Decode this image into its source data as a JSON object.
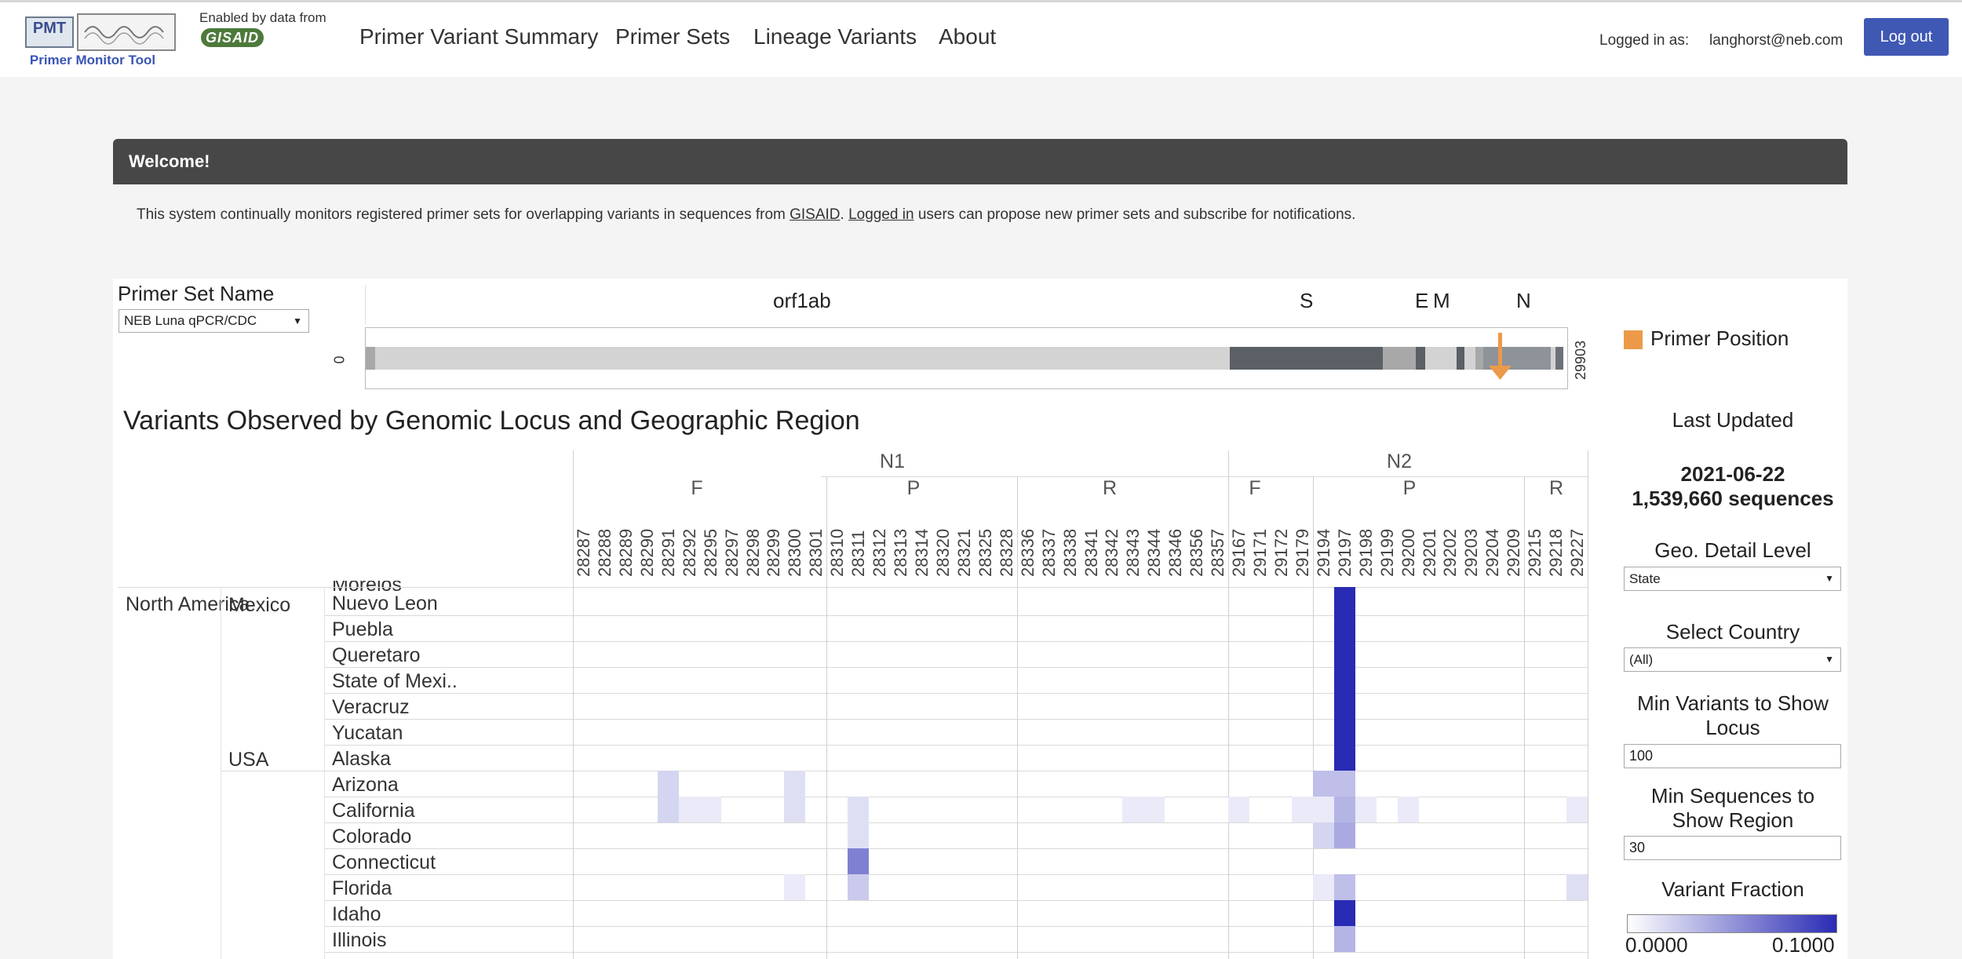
{
  "header": {
    "logo_abbr": "PMT",
    "logo_caption": "Primer Monitor Tool",
    "enabled_by": "Enabled by data from",
    "gisaid_logo": "GISAID",
    "nav": [
      "Primer Variant Summary",
      "Primer Sets",
      "Lineage Variants",
      "About"
    ],
    "logged_in_label": "Logged in as:",
    "user_email": "langhorst@neb.com",
    "logout_label": "Log out"
  },
  "welcome": {
    "title": "Welcome!",
    "text_1": "This system continually monitors registered primer sets for overlapping variants in sequences from ",
    "link_gisaid": "GISAID",
    "text_2": ". ",
    "link_logged_in": "Logged in",
    "text_3": " users can propose new primer sets and subscribe for notifications."
  },
  "primer_set": {
    "label": "Primer Set Name",
    "selected": "NEB Luna qPCR/CDC"
  },
  "genome": {
    "start_tick": "0",
    "end_tick": "29903",
    "gene_labels": [
      "orf1ab",
      "S",
      "E",
      "M",
      "N"
    ],
    "legend_label": "Primer Position",
    "primer_color": "#ec9a4a"
  },
  "heatmap": {
    "title": "Variants Observed by Genomic Locus and Geographic Region",
    "primer_groups": [
      "N1",
      "N2"
    ],
    "sub_groups": [
      "F",
      "P",
      "R",
      "F",
      "P",
      "R"
    ],
    "loci": [
      "28287",
      "28288",
      "28289",
      "28290",
      "28291",
      "28292",
      "28295",
      "28297",
      "28298",
      "28299",
      "28300",
      "28301",
      "28310",
      "28311",
      "28312",
      "28313",
      "28314",
      "28320",
      "28321",
      "28325",
      "28328",
      "28336",
      "28337",
      "28338",
      "28341",
      "28342",
      "28343",
      "28344",
      "28346",
      "28356",
      "28357",
      "29167",
      "29171",
      "29172",
      "29179",
      "29194",
      "29197",
      "29198",
      "29199",
      "29200",
      "29201",
      "29202",
      "29203",
      "29204",
      "29209",
      "29215",
      "29218",
      "29227"
    ],
    "continent": "North America",
    "countries": [
      "Mexico",
      "USA"
    ],
    "partial_region": "Morelos",
    "regions": [
      "Nuevo Leon",
      "Puebla",
      "Queretaro",
      "State of Mexi..",
      "Veracruz",
      "Yucatan",
      "Alaska",
      "Arizona",
      "California",
      "Colorado",
      "Connecticut",
      "Florida",
      "Idaho",
      "Illinois"
    ],
    "cells": [
      {
        "region": "Nuevo Leon",
        "locus": "29197",
        "fraction": 0.1
      },
      {
        "region": "Puebla",
        "locus": "29197",
        "fraction": 0.1
      },
      {
        "region": "Queretaro",
        "locus": "29197",
        "fraction": 0.1
      },
      {
        "region": "State of Mexi..",
        "locus": "29197",
        "fraction": 0.1
      },
      {
        "region": "Veracruz",
        "locus": "29197",
        "fraction": 0.1
      },
      {
        "region": "Yucatan",
        "locus": "29197",
        "fraction": 0.1
      },
      {
        "region": "Alaska",
        "locus": "29197",
        "fraction": 0.1
      },
      {
        "region": "Arizona",
        "locus": "28291",
        "fraction": 0.02
      },
      {
        "region": "Arizona",
        "locus": "28300",
        "fraction": 0.015
      },
      {
        "region": "Arizona",
        "locus": "29194",
        "fraction": 0.03
      },
      {
        "region": "Arizona",
        "locus": "29197",
        "fraction": 0.03
      },
      {
        "region": "California",
        "locus": "28291",
        "fraction": 0.02
      },
      {
        "region": "California",
        "locus": "28292",
        "fraction": 0.01
      },
      {
        "region": "California",
        "locus": "28295",
        "fraction": 0.01
      },
      {
        "region": "California",
        "locus": "28300",
        "fraction": 0.015
      },
      {
        "region": "California",
        "locus": "28311",
        "fraction": 0.015
      },
      {
        "region": "California",
        "locus": "28343",
        "fraction": 0.01
      },
      {
        "region": "California",
        "locus": "28344",
        "fraction": 0.01
      },
      {
        "region": "California",
        "locus": "29167",
        "fraction": 0.01
      },
      {
        "region": "California",
        "locus": "29179",
        "fraction": 0.01
      },
      {
        "region": "California",
        "locus": "29194",
        "fraction": 0.01
      },
      {
        "region": "California",
        "locus": "29197",
        "fraction": 0.035
      },
      {
        "region": "California",
        "locus": "29198",
        "fraction": 0.01
      },
      {
        "region": "California",
        "locus": "29200",
        "fraction": 0.01
      },
      {
        "region": "California",
        "locus": "29227",
        "fraction": 0.01
      },
      {
        "region": "Colorado",
        "locus": "28311",
        "fraction": 0.015
      },
      {
        "region": "Colorado",
        "locus": "29194",
        "fraction": 0.02
      },
      {
        "region": "Colorado",
        "locus": "29197",
        "fraction": 0.04
      },
      {
        "region": "Connecticut",
        "locus": "28311",
        "fraction": 0.06
      },
      {
        "region": "Florida",
        "locus": "28300",
        "fraction": 0.01
      },
      {
        "region": "Florida",
        "locus": "28311",
        "fraction": 0.025
      },
      {
        "region": "Florida",
        "locus": "29194",
        "fraction": 0.01
      },
      {
        "region": "Florida",
        "locus": "29197",
        "fraction": 0.03
      },
      {
        "region": "Florida",
        "locus": "29227",
        "fraction": 0.015
      },
      {
        "region": "Idaho",
        "locus": "29197",
        "fraction": 0.1
      },
      {
        "region": "Illinois",
        "locus": "29197",
        "fraction": 0.035
      }
    ]
  },
  "sidebar": {
    "last_updated_label": "Last Updated",
    "last_updated_date": "2021-06-22",
    "sequences": "1,539,660 sequences",
    "geo_label": "Geo. Detail Level",
    "geo_value": "State",
    "country_label": "Select Country",
    "country_value": "(All)",
    "min_variants_label": "Min Variants to Show Locus",
    "min_variants_value": "100",
    "min_sequences_label": "Min Sequences to Show Region",
    "min_sequences_value": "30",
    "variant_fraction_label": "Variant Fraction",
    "legend_min": "0.0000",
    "legend_max": "0.1000",
    "max_color": "#2a2bb4"
  }
}
